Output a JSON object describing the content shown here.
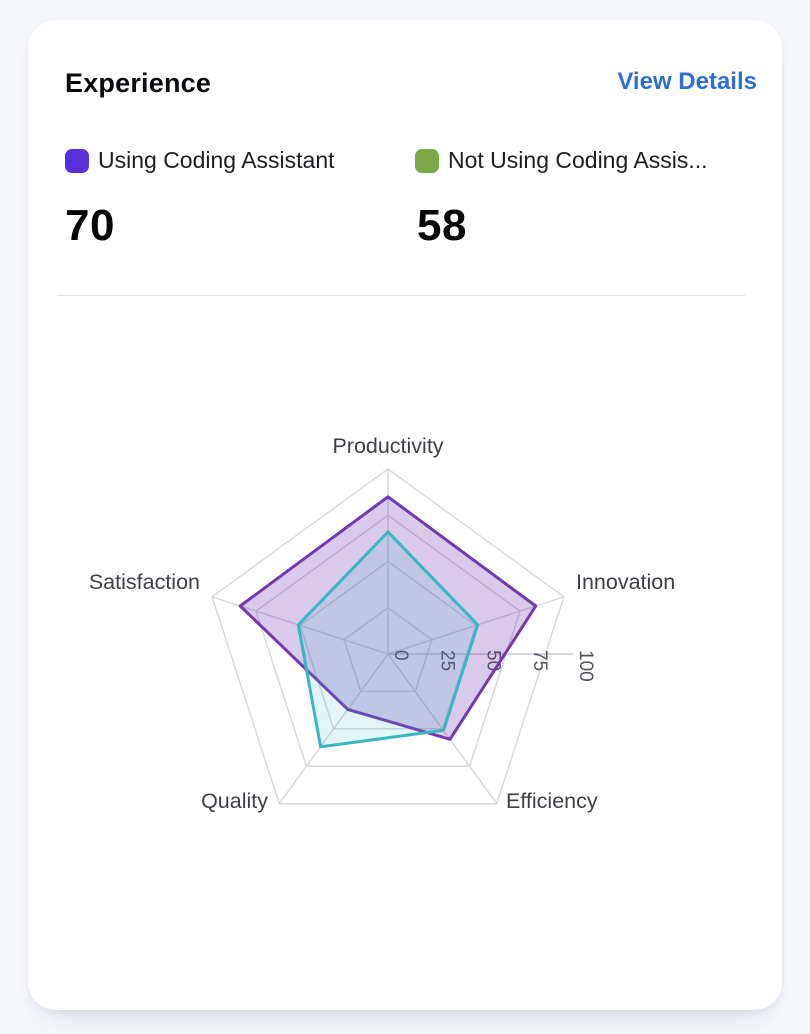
{
  "card": {
    "title": "Experience",
    "view_details_label": "View Details"
  },
  "legend": {
    "items": [
      {
        "label": "Using Coding Assistant",
        "value": "70",
        "swatch_color": "#5a31d8"
      },
      {
        "label": "Not Using Coding Assis...",
        "value": "58",
        "swatch_color": "#7aa844"
      }
    ]
  },
  "chart_data": {
    "type": "radar",
    "categories": [
      "Productivity",
      "Innovation",
      "Efficiency",
      "Quality",
      "Satisfaction"
    ],
    "series": [
      {
        "name": "Using Coding Assistant",
        "values": [
          85,
          84,
          57,
          37,
          84
        ],
        "stroke": "#7239b0",
        "fill": "rgba(114,57,176,0.27)"
      },
      {
        "name": "Not Using Coding Assistant",
        "values": [
          66,
          51,
          51,
          62,
          51
        ],
        "stroke": "#38b6c2",
        "fill": "rgba(56,182,194,0.15)"
      }
    ],
    "radial_ticks": [
      0,
      25,
      50,
      75,
      100
    ],
    "max": 100,
    "grid": true,
    "legend_position": "top",
    "grid_color": "#d8d8de",
    "axis_line_color": "#c9c9d1",
    "tick_label_color": "#52525b",
    "category_label_color": "#3f3f46"
  },
  "colors": {
    "accent_link": "#2e6fd4",
    "card_bg": "#ffffff",
    "page_bg": "#f5f7fb",
    "divider": "#e1e2e8"
  }
}
